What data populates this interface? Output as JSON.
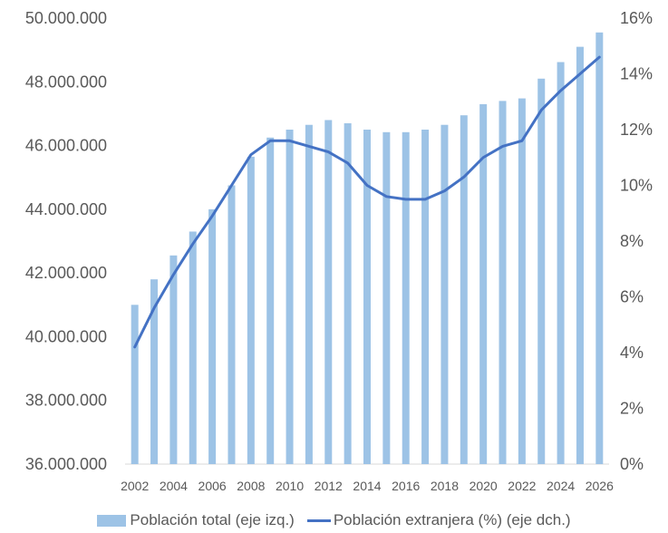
{
  "chart_data": {
    "type": "bar+line",
    "categories": [
      2002,
      2003,
      2004,
      2005,
      2006,
      2007,
      2008,
      2009,
      2010,
      2011,
      2012,
      2013,
      2014,
      2015,
      2016,
      2017,
      2018,
      2019,
      2020,
      2021,
      2022,
      2023,
      2024,
      2025,
      2026
    ],
    "x_tick_labels": [
      "2002",
      "2004",
      "2006",
      "2008",
      "2010",
      "2012",
      "2014",
      "2016",
      "2018",
      "2020",
      "2022",
      "2024",
      "2026"
    ],
    "series": [
      {
        "name": "Población total (eje izq.)",
        "type": "bar",
        "axis": "left",
        "color": "#9dc3e6",
        "values": [
          41000000,
          41800000,
          42550000,
          43300000,
          44000000,
          44750000,
          45650000,
          46250000,
          46500000,
          46650000,
          46800000,
          46700000,
          46500000,
          46420000,
          46420000,
          46500000,
          46650000,
          46950000,
          47300000,
          47400000,
          47480000,
          48100000,
          48620000,
          49100000,
          49550000
        ]
      },
      {
        "name": "Población extranjera (%) (eje dch.)",
        "type": "line",
        "axis": "right",
        "color": "#4472c4",
        "values": [
          4.2,
          5.6,
          6.8,
          7.9,
          8.9,
          10.0,
          11.1,
          11.6,
          11.6,
          11.4,
          11.2,
          10.8,
          10.0,
          9.6,
          9.5,
          9.5,
          9.8,
          10.3,
          11.0,
          11.4,
          11.6,
          12.7,
          13.4,
          14.0,
          14.6
        ]
      }
    ],
    "left_axis": {
      "min": 36000000,
      "max": 50000000,
      "step": 2000000,
      "tick_labels": [
        "36.000.000",
        "38.000.000",
        "40.000.000",
        "42.000.000",
        "44.000.000",
        "46.000.000",
        "48.000.000",
        "50.000.000"
      ]
    },
    "right_axis": {
      "min": 0,
      "max": 16,
      "step": 2,
      "tick_labels": [
        "0%",
        "2%",
        "4%",
        "6%",
        "8%",
        "10%",
        "12%",
        "14%",
        "16%"
      ]
    },
    "grid": false,
    "legend_position": "bottom",
    "title": "",
    "xlabel": "",
    "ylabel": ""
  },
  "legend": {
    "bar_label": "Población total (eje izq.)",
    "line_label": "Población extranjera (%) (eje dch.)"
  }
}
